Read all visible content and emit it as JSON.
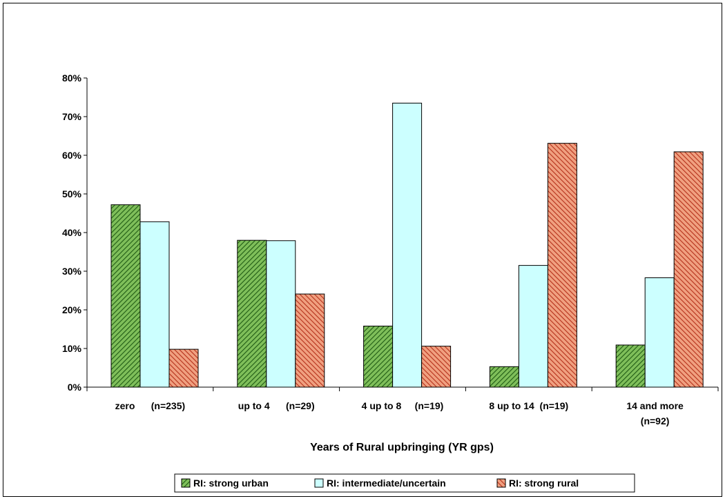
{
  "chart_data": {
    "type": "bar",
    "categories": [
      "zero      (n=235)",
      "up to 4      (n=29)",
      "4 up to 8     (n=19)",
      "8 up to 14  (n=19)",
      "14 and more (n=92)"
    ],
    "category_labels": [
      [
        "zero      (n=235)"
      ],
      [
        "up to 4      (n=29)"
      ],
      [
        "4 up to 8     (n=19)"
      ],
      [
        "8 up to 14  (n=19)"
      ],
      [
        "14 and more",
        "(n=92)"
      ]
    ],
    "series": [
      {
        "name": "RI: strong urban",
        "values": [
          47.2,
          38.0,
          15.8,
          5.3,
          10.9
        ],
        "color": "#7fbf5a",
        "hatch_color": "#1f5a14"
      },
      {
        "name": "RI: intermediate/uncertain",
        "values": [
          42.8,
          37.9,
          73.5,
          31.5,
          28.3
        ],
        "color": "#ccffff",
        "hatch_color": "#ccffff"
      },
      {
        "name": "RI: strong rural",
        "values": [
          9.8,
          24.1,
          10.6,
          63.1,
          60.9
        ],
        "color": "#f0a080",
        "hatch_color": "#b5301a"
      }
    ],
    "y_ticks": [
      "0%",
      "10%",
      "20%",
      "30%",
      "40%",
      "50%",
      "60%",
      "70%",
      "80%"
    ],
    "ylim": [
      0,
      80
    ],
    "title": "",
    "xlabel": "Years of Rural upbringing (YR gps)",
    "ylabel": "",
    "grid": false,
    "legend_position": "bottom"
  }
}
